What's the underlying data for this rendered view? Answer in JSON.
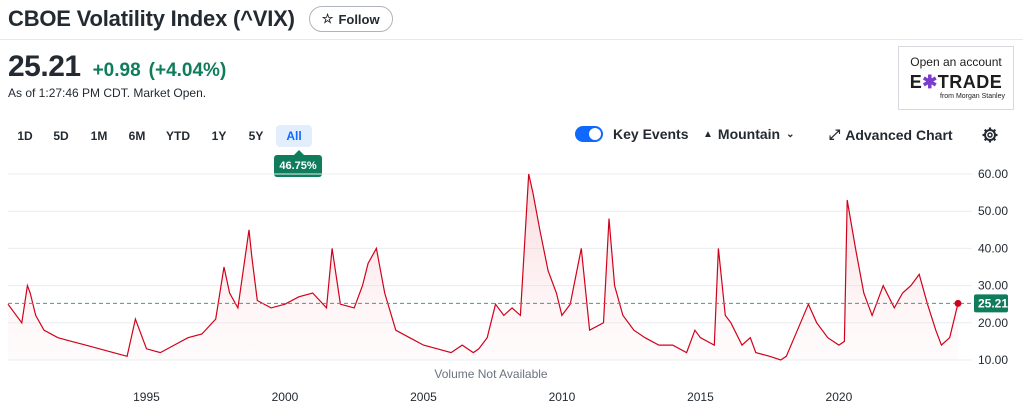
{
  "header": {
    "title": "CBOE Volatility Index (^VIX)",
    "follow_label": "Follow"
  },
  "quote": {
    "price": "25.21",
    "change": "+0.98",
    "change_pct": "(+4.04%)",
    "as_of": "As of 1:27:46 PM CDT. Market Open."
  },
  "ad": {
    "open": "Open an account",
    "brand_a": "E",
    "brand_b": "TRADE",
    "sub": "from Morgan Stanley"
  },
  "ranges": [
    "1D",
    "5D",
    "1M",
    "6M",
    "YTD",
    "1Y",
    "5Y",
    "All"
  ],
  "active_range": "All",
  "range_badge": "46.75%",
  "toolbar": {
    "key_events": "Key Events",
    "chart_type": "Mountain",
    "advanced": "Advanced Chart"
  },
  "volume_note": "Volume Not Available",
  "colors": {
    "line": "#d0021b",
    "positive": "#0f7d5b",
    "accent": "#0f69ff"
  },
  "chart_data": {
    "type": "area",
    "title": "",
    "xlabel": "",
    "ylabel": "",
    "ylim": [
      10,
      60
    ],
    "y_ticks": [
      "60.00",
      "50.00",
      "40.00",
      "30.00",
      "20.00",
      "10.00"
    ],
    "x_ticks": [
      "1995",
      "2000",
      "2005",
      "2010",
      "2015",
      "2020"
    ],
    "current_value": 25.21,
    "current_label": "25.21",
    "series": [
      {
        "x": [
          1990.0,
          1990.5,
          1990.7,
          1990.8,
          1991.0,
          1991.3,
          1991.8,
          1992.3,
          1992.8,
          1993.3,
          1993.8,
          1994.3,
          1994.6,
          1995.0,
          1995.5,
          1996.0,
          1996.5,
          1997.0,
          1997.5,
          1997.8,
          1998.0,
          1998.3,
          1998.7,
          1998.8,
          1999.0,
          1999.5,
          2000.0,
          2000.5,
          2001.0,
          2001.5,
          2001.7,
          2002.0,
          2002.5,
          2002.8,
          2003.0,
          2003.3,
          2003.6,
          2004.0,
          2004.5,
          2005.0,
          2005.5,
          2006.0,
          2006.4,
          2006.8,
          2007.0,
          2007.3,
          2007.6,
          2007.9,
          2008.2,
          2008.5,
          2008.8,
          2008.95,
          2009.2,
          2009.5,
          2009.8,
          2010.0,
          2010.3,
          2010.7,
          2011.0,
          2011.5,
          2011.7,
          2011.9,
          2012.2,
          2012.6,
          2013.0,
          2013.5,
          2014.0,
          2014.5,
          2014.8,
          2015.0,
          2015.5,
          2015.65,
          2015.9,
          2016.1,
          2016.5,
          2016.8,
          2017.0,
          2017.5,
          2017.9,
          2018.1,
          2018.5,
          2018.9,
          2019.2,
          2019.6,
          2020.0,
          2020.2,
          2020.3,
          2020.6,
          2020.9,
          2021.2,
          2021.6,
          2022.0,
          2022.3,
          2022.6,
          2022.9,
          2023.2,
          2023.5,
          2023.7,
          2024.0,
          2024.3
        ],
        "values": [
          25,
          20,
          30,
          28,
          22,
          18,
          16,
          15,
          14,
          13,
          12,
          11,
          21,
          13,
          12,
          14,
          16,
          17,
          21,
          35,
          28,
          24,
          45,
          38,
          26,
          24,
          25,
          27,
          28,
          24,
          40,
          25,
          24,
          30,
          36,
          40,
          28,
          18,
          16,
          14,
          13,
          12,
          14,
          12,
          13,
          16,
          25,
          22,
          24,
          22,
          60,
          55,
          45,
          34,
          28,
          22,
          25,
          40,
          18,
          20,
          48,
          30,
          22,
          18,
          16,
          14,
          14,
          12,
          18,
          16,
          14,
          40,
          22,
          20,
          14,
          16,
          12,
          11,
          10,
          11,
          18,
          25,
          20,
          16,
          14,
          15,
          53,
          40,
          28,
          22,
          30,
          24,
          28,
          30,
          33,
          25,
          18,
          14,
          16,
          25.21
        ]
      }
    ]
  }
}
